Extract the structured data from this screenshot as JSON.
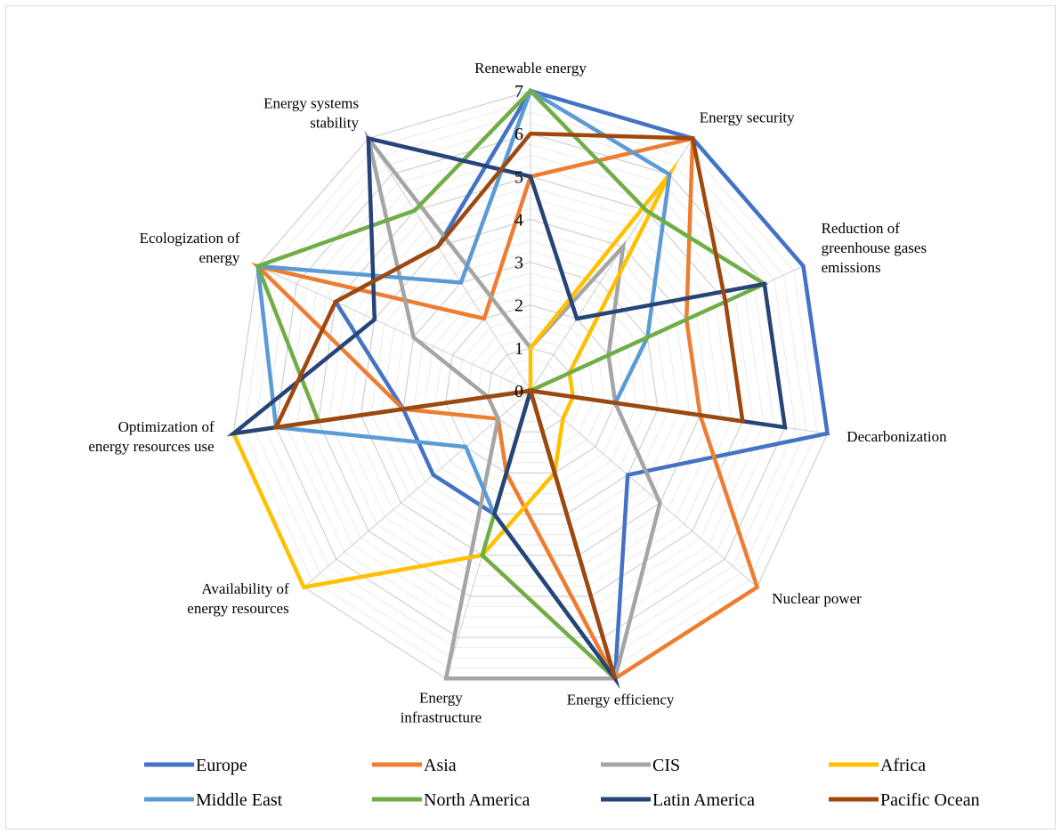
{
  "chart_data": {
    "type": "radar",
    "title": "",
    "axes": [
      [
        "Renewable energy"
      ],
      [
        "Energy security"
      ],
      [
        "Reduction of",
        "greenhouse gases",
        "emissions"
      ],
      [
        "Decarbonization"
      ],
      [
        "Nuclear power"
      ],
      [
        "Energy efficiency"
      ],
      [
        "Energy",
        "infrastructure"
      ],
      [
        "Availability of",
        "energy resources"
      ],
      [
        "Optimization of",
        "energy resources use"
      ],
      [
        "Ecologization of",
        "energy"
      ],
      [
        "Energy systems",
        "stability"
      ]
    ],
    "rlim": [
      0,
      7
    ],
    "ticks": [
      "0",
      "1",
      "2",
      "3",
      "4",
      "5",
      "6",
      "7"
    ],
    "gridlines": true,
    "legend_position": "bottom",
    "series": [
      {
        "name": "Europe",
        "color": "#4472c4",
        "values": [
          7,
          7,
          7,
          7,
          3,
          7,
          3,
          3,
          3,
          5,
          4
        ]
      },
      {
        "name": "Asia",
        "color": "#ed7d31",
        "values": [
          5,
          7,
          4,
          4,
          7,
          7,
          2,
          1,
          3,
          7,
          2
        ]
      },
      {
        "name": "CIS",
        "color": "#a5a5a5",
        "values": [
          1,
          4,
          2,
          2,
          4,
          7,
          7,
          1,
          1,
          3,
          7
        ]
      },
      {
        "name": "Africa",
        "color": "#ffc000",
        "values": [
          1,
          6,
          1,
          1,
          1,
          2,
          4,
          7,
          7,
          0,
          0
        ]
      },
      {
        "name": "Middle East",
        "color": "#5b9bd5",
        "values": [
          7,
          6,
          3,
          2,
          0,
          0,
          3,
          2,
          6,
          7,
          3
        ]
      },
      {
        "name": "North America",
        "color": "#70ad47",
        "values": [
          7,
          5,
          6,
          0,
          0,
          7,
          4,
          0,
          5,
          7,
          5
        ]
      },
      {
        "name": "Latin America",
        "color": "#264478",
        "values": [
          5,
          2,
          6,
          6,
          0,
          7,
          3,
          0,
          7,
          4,
          7
        ]
      },
      {
        "name": "Pacific Ocean",
        "color": "#9e480e",
        "values": [
          6,
          7,
          5,
          5,
          0,
          7,
          0,
          0,
          6,
          5,
          4
        ]
      }
    ]
  }
}
